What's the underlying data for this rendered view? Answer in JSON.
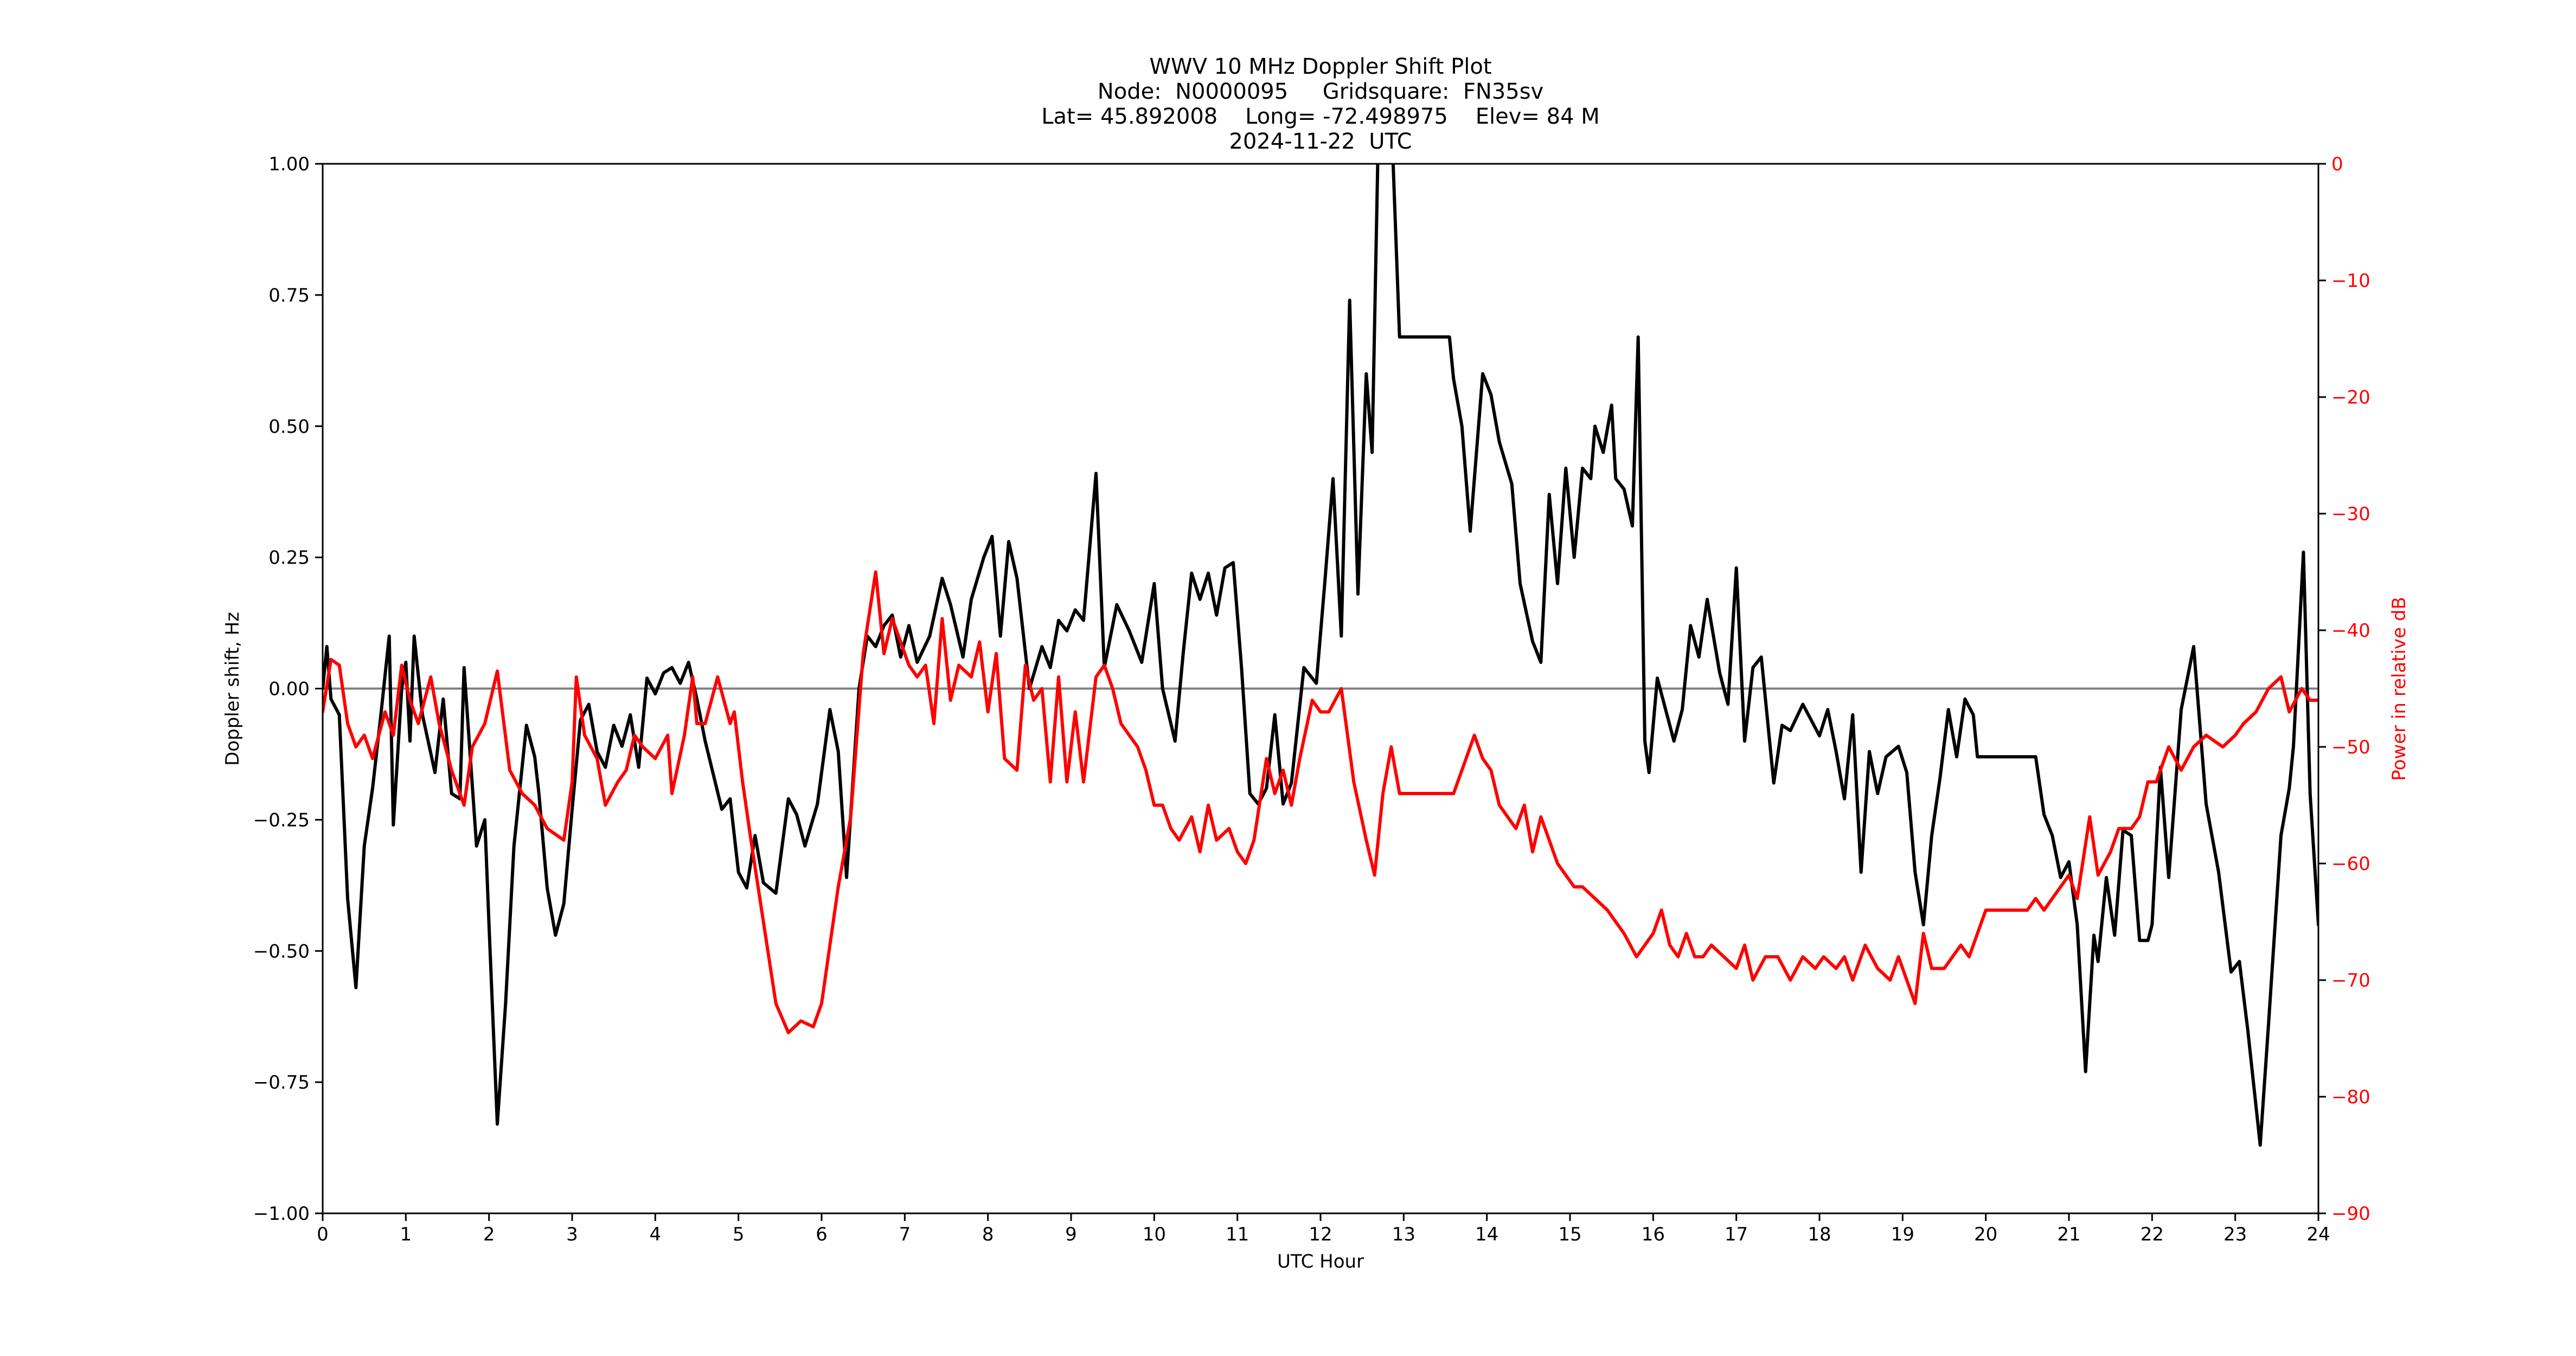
{
  "figure": {
    "title_lines": [
      "WWV 10 MHz Doppler Shift Plot",
      "Node:  N0000095     Gridsquare:  FN35sv",
      "Lat= 45.892008    Long= -72.498975    Elev= 84 M",
      "2024-11-22  UTC"
    ],
    "colors": {
      "doppler_line": "#000000",
      "power_line": "#ff0000",
      "zero_line": "#808080",
      "right_axis": "#ff0000",
      "background": "#ffffff"
    }
  },
  "chart_data": {
    "type": "line",
    "title": "WWV 10 MHz Doppler Shift Plot",
    "subtitle": [
      "Node:  N0000095     Gridsquare:  FN35sv",
      "Lat= 45.892008    Long= -72.498975    Elev= 84 M",
      "2024-11-22  UTC"
    ],
    "xlabel": "UTC Hour",
    "ylabel": "Doppler shift, Hz",
    "ylabel_right": "Power in relative dB",
    "xlim": [
      0,
      24
    ],
    "ylim": [
      -1.0,
      1.0
    ],
    "ylim_right": [
      -90,
      0
    ],
    "xticks": [
      "0",
      "1",
      "2",
      "3",
      "4",
      "5",
      "6",
      "7",
      "8",
      "9",
      "10",
      "11",
      "12",
      "13",
      "14",
      "15",
      "16",
      "17",
      "18",
      "19",
      "20",
      "21",
      "22",
      "23",
      "24"
    ],
    "yticks": [
      "1.00",
      "0.75",
      "0.50",
      "0.25",
      "0.00",
      "−0.25",
      "−0.50",
      "−0.75",
      "−1.00"
    ],
    "yticks_right": [
      "0",
      "−10",
      "−20",
      "−30",
      "−40",
      "−50",
      "−60",
      "−70",
      "−80",
      "−90"
    ],
    "grid": false,
    "legend": null,
    "reference_line": {
      "y": 0.0,
      "color": "#808080"
    },
    "series": [
      {
        "name": "Doppler shift",
        "axis": "left",
        "color": "#000000",
        "x": [
          0,
          0.05,
          0.1,
          0.2,
          0.3,
          0.4,
          0.5,
          0.6,
          0.7,
          0.8,
          0.85,
          0.95,
          1.0,
          1.05,
          1.1,
          1.2,
          1.35,
          1.45,
          1.55,
          1.65,
          1.7,
          1.85,
          1.95,
          2.0,
          2.1,
          2.2,
          2.3,
          2.45,
          2.55,
          2.6,
          2.7,
          2.8,
          2.9,
          3.0,
          3.1,
          3.2,
          3.3,
          3.4,
          3.5,
          3.6,
          3.7,
          3.8,
          3.9,
          4.0,
          4.1,
          4.2,
          4.3,
          4.4,
          4.5,
          4.6,
          4.8,
          4.9,
          5.0,
          5.1,
          5.2,
          5.3,
          5.45,
          5.6,
          5.7,
          5.8,
          5.95,
          6.1,
          6.2,
          6.3,
          6.45,
          6.55,
          6.65,
          6.75,
          6.85,
          6.95,
          7.05,
          7.15,
          7.3,
          7.45,
          7.55,
          7.7,
          7.8,
          7.95,
          8.05,
          8.15,
          8.25,
          8.35,
          8.5,
          8.65,
          8.75,
          8.85,
          8.95,
          9.05,
          9.15,
          9.3,
          9.4,
          9.55,
          9.7,
          9.85,
          10.0,
          10.1,
          10.25,
          10.35,
          10.45,
          10.55,
          10.65,
          10.75,
          10.85,
          10.95,
          11.05,
          11.15,
          11.25,
          11.35,
          11.45,
          11.55,
          11.65,
          11.8,
          11.95,
          12.05,
          12.15,
          12.25,
          12.35,
          12.45,
          12.55,
          12.62,
          12.7,
          12.85,
          12.95,
          13.3,
          13.55,
          13.6,
          13.7,
          13.8,
          13.95,
          14.05,
          14.15,
          14.3,
          14.4,
          14.55,
          14.65,
          14.75,
          14.85,
          14.95,
          15.05,
          15.15,
          15.25,
          15.3,
          15.4,
          15.5,
          15.55,
          15.65,
          15.75,
          15.82,
          15.9,
          15.95,
          16.05,
          16.15,
          16.25,
          16.35,
          16.45,
          16.55,
          16.65,
          16.8,
          16.9,
          17.0,
          17.1,
          17.2,
          17.3,
          17.45,
          17.55,
          17.65,
          17.8,
          17.9,
          18.0,
          18.1,
          18.2,
          18.3,
          18.4,
          18.5,
          18.6,
          18.7,
          18.8,
          18.95,
          19.05,
          19.15,
          19.25,
          19.35,
          19.45,
          19.55,
          19.65,
          19.75,
          19.85,
          19.9,
          20.0,
          20.6,
          20.7,
          20.8,
          20.9,
          21.0,
          21.1,
          21.2,
          21.3,
          21.35,
          21.45,
          21.55,
          21.65,
          21.75,
          21.85,
          21.95,
          22.0,
          22.1,
          22.2,
          22.35,
          22.5,
          22.65,
          22.8,
          22.95,
          23.05,
          23.15,
          23.3,
          23.4,
          23.55,
          23.65,
          23.7,
          23.82,
          23.9,
          24.0
        ],
        "values": [
          0.0,
          0.08,
          -0.02,
          -0.05,
          -0.4,
          -0.57,
          -0.3,
          -0.19,
          -0.05,
          0.1,
          -0.26,
          0.0,
          0.05,
          -0.1,
          0.1,
          -0.05,
          -0.16,
          -0.02,
          -0.2,
          -0.21,
          0.04,
          -0.3,
          -0.25,
          -0.45,
          -0.83,
          -0.6,
          -0.3,
          -0.07,
          -0.13,
          -0.2,
          -0.38,
          -0.47,
          -0.41,
          -0.23,
          -0.06,
          -0.03,
          -0.12,
          -0.15,
          -0.07,
          -0.11,
          -0.05,
          -0.15,
          0.02,
          -0.01,
          0.03,
          0.04,
          0.01,
          0.05,
          -0.02,
          -0.1,
          -0.23,
          -0.21,
          -0.35,
          -0.38,
          -0.28,
          -0.37,
          -0.39,
          -0.21,
          -0.24,
          -0.3,
          -0.22,
          -0.04,
          -0.12,
          -0.36,
          0.0,
          0.1,
          0.08,
          0.12,
          0.14,
          0.06,
          0.12,
          0.05,
          0.1,
          0.21,
          0.16,
          0.06,
          0.17,
          0.25,
          0.29,
          0.1,
          0.28,
          0.21,
          0.0,
          0.08,
          0.04,
          0.13,
          0.11,
          0.15,
          0.13,
          0.41,
          0.04,
          0.16,
          0.11,
          0.05,
          0.2,
          0.0,
          -0.1,
          0.07,
          0.22,
          0.17,
          0.22,
          0.14,
          0.23,
          0.24,
          0.04,
          -0.2,
          -0.22,
          -0.19,
          -0.05,
          -0.22,
          -0.18,
          0.04,
          0.01,
          0.2,
          0.4,
          0.1,
          0.74,
          0.18,
          0.6,
          0.45,
          1.1,
          1.1,
          0.67,
          0.67,
          0.67,
          0.59,
          0.5,
          0.3,
          0.6,
          0.56,
          0.47,
          0.39,
          0.2,
          0.09,
          0.05,
          0.37,
          0.2,
          0.42,
          0.25,
          0.42,
          0.4,
          0.5,
          0.45,
          0.54,
          0.4,
          0.38,
          0.31,
          0.67,
          -0.1,
          -0.16,
          0.02,
          -0.04,
          -0.1,
          -0.04,
          0.12,
          0.06,
          0.17,
          0.03,
          -0.03,
          0.23,
          -0.1,
          0.04,
          0.06,
          -0.18,
          -0.07,
          -0.08,
          -0.03,
          -0.06,
          -0.09,
          -0.04,
          -0.12,
          -0.21,
          -0.05,
          -0.35,
          -0.12,
          -0.2,
          -0.13,
          -0.11,
          -0.16,
          -0.35,
          -0.45,
          -0.28,
          -0.17,
          -0.04,
          -0.13,
          -0.02,
          -0.05,
          -0.13,
          -0.13,
          -0.13,
          -0.24,
          -0.28,
          -0.36,
          -0.33,
          -0.45,
          -0.73,
          -0.47,
          -0.52,
          -0.36,
          -0.47,
          -0.27,
          -0.28,
          -0.48,
          -0.48,
          -0.45,
          -0.15,
          -0.36,
          -0.04,
          0.08,
          -0.22,
          -0.35,
          -0.54,
          -0.52,
          -0.65,
          -0.87,
          -0.64,
          -0.28,
          -0.19,
          -0.11,
          0.26,
          -0.2,
          -0.45
        ]
      },
      {
        "name": "Power",
        "axis": "right",
        "color": "#ff0000",
        "x": [
          0,
          0.1,
          0.2,
          0.3,
          0.4,
          0.5,
          0.6,
          0.75,
          0.85,
          0.95,
          1.05,
          1.15,
          1.3,
          1.4,
          1.55,
          1.7,
          1.8,
          1.95,
          2.1,
          2.25,
          2.4,
          2.55,
          2.7,
          2.9,
          3.0,
          3.05,
          3.15,
          3.3,
          3.4,
          3.55,
          3.65,
          3.75,
          3.85,
          4.0,
          4.15,
          4.2,
          4.35,
          4.45,
          4.5,
          4.6,
          4.75,
          4.9,
          4.95,
          5.05,
          5.15,
          5.3,
          5.45,
          5.6,
          5.75,
          5.9,
          6.0,
          6.1,
          6.2,
          6.35,
          6.5,
          6.65,
          6.75,
          6.85,
          6.95,
          7.05,
          7.15,
          7.25,
          7.35,
          7.45,
          7.55,
          7.65,
          7.8,
          7.9,
          8.0,
          8.1,
          8.2,
          8.35,
          8.45,
          8.55,
          8.65,
          8.75,
          8.85,
          8.95,
          9.05,
          9.15,
          9.3,
          9.4,
          9.5,
          9.6,
          9.7,
          9.8,
          9.9,
          10.0,
          10.1,
          10.2,
          10.3,
          10.45,
          10.55,
          10.65,
          10.75,
          10.9,
          11.0,
          11.1,
          11.2,
          11.35,
          11.45,
          11.55,
          11.65,
          11.75,
          11.9,
          12.0,
          12.1,
          12.25,
          12.4,
          12.55,
          12.65,
          12.75,
          12.85,
          12.95,
          13.0,
          13.6,
          13.7,
          13.85,
          13.95,
          14.05,
          14.15,
          14.25,
          14.35,
          14.45,
          14.55,
          14.65,
          14.75,
          14.85,
          14.95,
          15.05,
          15.15,
          15.3,
          15.45,
          15.55,
          15.65,
          15.8,
          15.9,
          16.0,
          16.1,
          16.2,
          16.3,
          16.4,
          16.5,
          16.6,
          16.7,
          16.85,
          17.0,
          17.1,
          17.2,
          17.35,
          17.5,
          17.65,
          17.8,
          17.95,
          18.05,
          18.2,
          18.3,
          18.4,
          18.55,
          18.7,
          18.85,
          18.95,
          19.05,
          19.15,
          19.25,
          19.35,
          19.5,
          19.6,
          19.7,
          19.8,
          19.9,
          20.0,
          20.5,
          20.6,
          20.7,
          20.8,
          20.9,
          21.0,
          21.1,
          21.25,
          21.35,
          21.5,
          21.6,
          21.75,
          21.85,
          21.95,
          22.05,
          22.2,
          22.35,
          22.5,
          22.65,
          22.85,
          23.0,
          23.1,
          23.25,
          23.4,
          23.55,
          23.65,
          23.8,
          23.9,
          24.0
        ],
        "values": [
          -47,
          -42.5,
          -43,
          -48,
          -50,
          -49,
          -51,
          -47,
          -49,
          -43,
          -46,
          -48,
          -44,
          -48,
          -52,
          -55,
          -50,
          -48,
          -43.5,
          -52,
          -54,
          -55,
          -57,
          -58,
          -53,
          -44,
          -49,
          -51,
          -55,
          -53,
          -52,
          -49,
          -50,
          -51,
          -49,
          -54,
          -49,
          -44,
          -48,
          -48,
          -44,
          -48,
          -47,
          -53,
          -58,
          -65,
          -72,
          -74.5,
          -73.5,
          -74,
          -72,
          -67,
          -62,
          -56,
          -42,
          -35,
          -42,
          -39,
          -41,
          -43,
          -44,
          -43,
          -48,
          -39,
          -46,
          -43,
          -44,
          -41,
          -47,
          -42,
          -51,
          -52,
          -43,
          -46,
          -45,
          -53,
          -44,
          -53,
          -47,
          -53,
          -44,
          -43,
          -45,
          -48,
          -49,
          -50,
          -52,
          -55,
          -55,
          -57,
          -58,
          -56,
          -59,
          -55,
          -58,
          -57,
          -59,
          -60,
          -58,
          -51,
          -54,
          -52,
          -55,
          -51,
          -46,
          -47,
          -47,
          -45,
          -53,
          -58,
          -61,
          -54,
          -50,
          -54,
          -54,
          -54,
          -52,
          -49,
          -51,
          -52,
          -55,
          -56,
          -57,
          -55,
          -59,
          -56,
          -58,
          -60,
          -61,
          -62,
          -62,
          -63,
          -64,
          -65,
          -66,
          -68,
          -67,
          -66,
          -64,
          -67,
          -68,
          -66,
          -68,
          -68,
          -67,
          -68,
          -69,
          -67,
          -70,
          -68,
          -68,
          -70,
          -68,
          -69,
          -68,
          -69,
          -68,
          -70,
          -67,
          -69,
          -70,
          -68,
          -70,
          -72,
          -66,
          -69,
          -69,
          -68,
          -67,
          -68,
          -66,
          -64,
          -64,
          -63,
          -64,
          -63,
          -62,
          -61,
          -63,
          -56,
          -61,
          -59,
          -57,
          -57,
          -56,
          -53,
          -53,
          -50,
          -52,
          -50,
          -49,
          -50,
          -49,
          -48,
          -47,
          -45,
          -44,
          -47,
          -45,
          -46,
          -46
        ]
      }
    ]
  }
}
